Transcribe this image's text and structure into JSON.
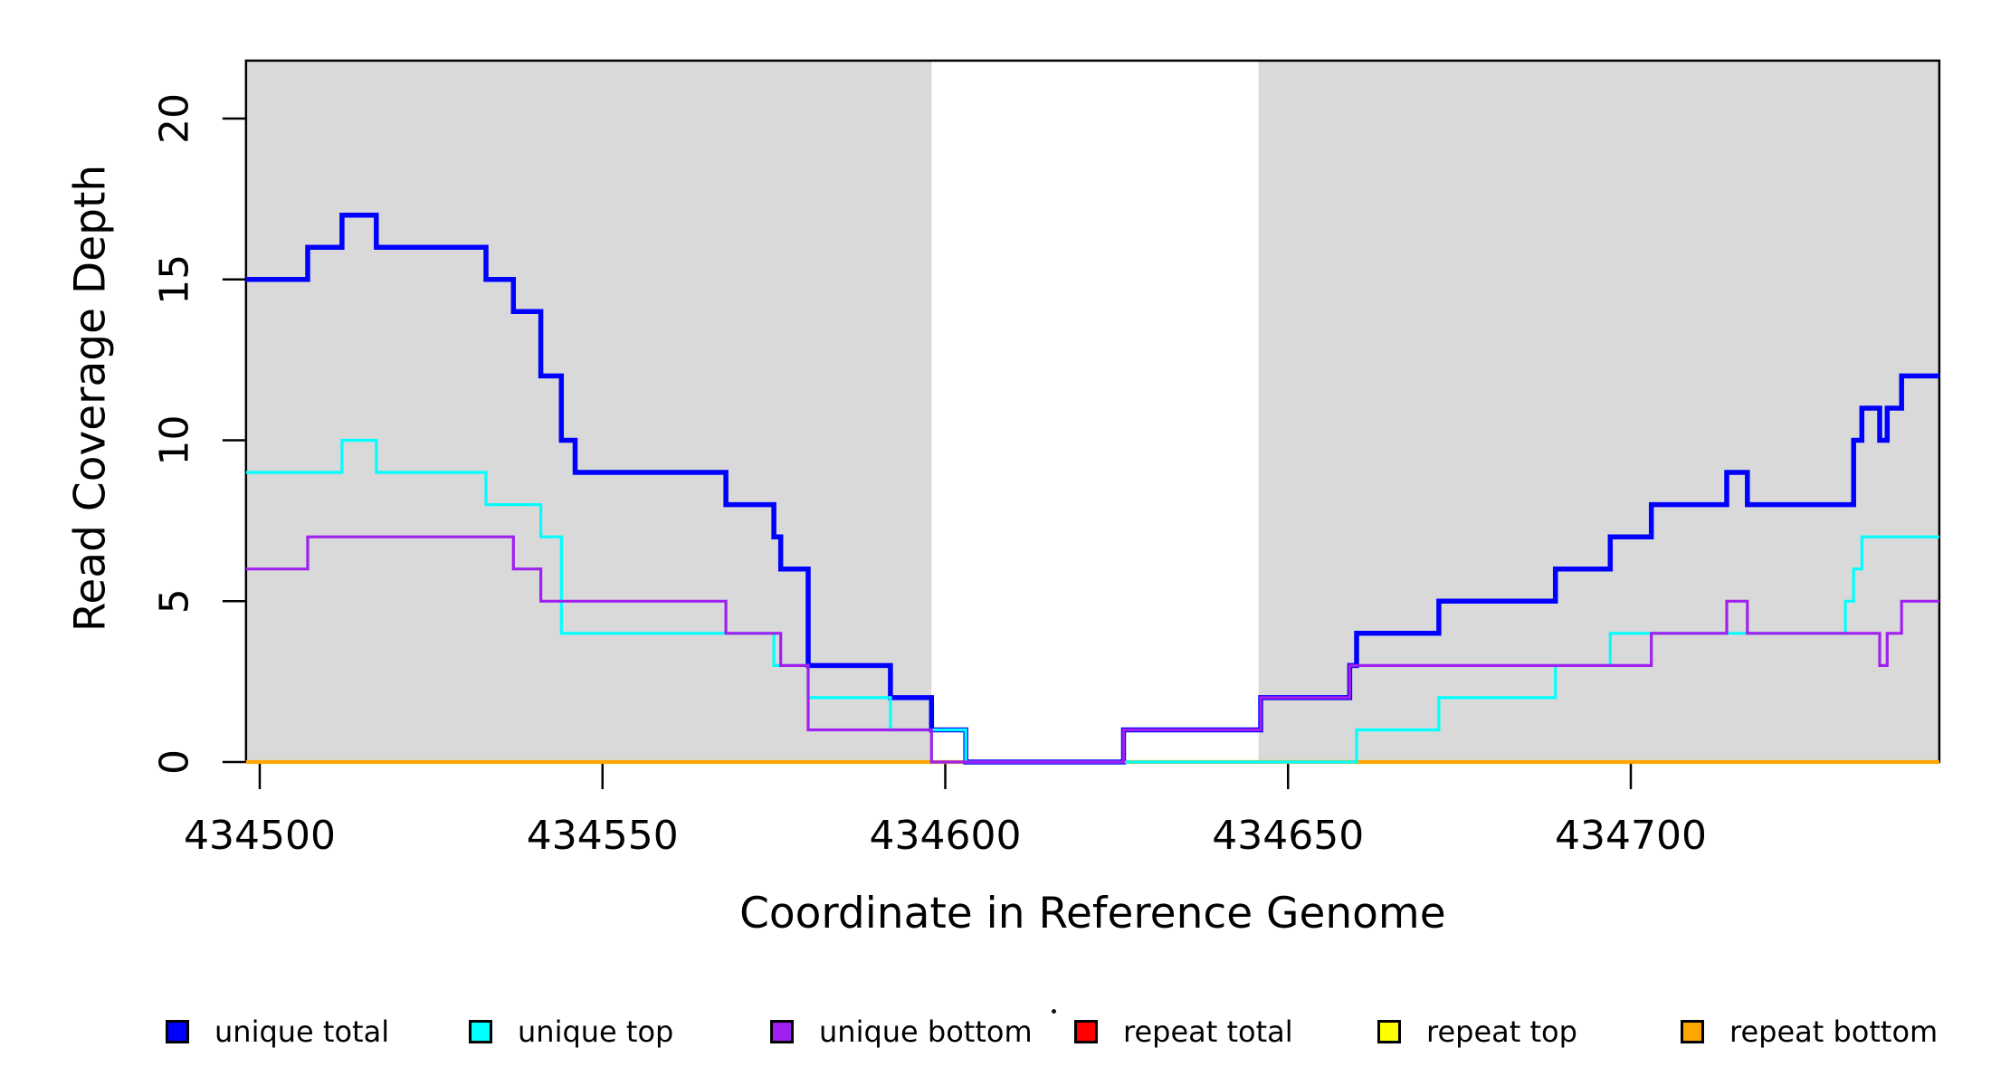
{
  "chart_data": {
    "type": "line",
    "subtype": "step-coverage",
    "xlabel": "Coordinate in Reference Genome",
    "ylabel": "Read Coverage Depth",
    "xlim": [
      434498,
      434745
    ],
    "ylim": [
      0,
      21.8
    ],
    "x_ticks": [
      434500,
      434550,
      434600,
      434650,
      434700
    ],
    "y_ticks": [
      0,
      5,
      10,
      15,
      20
    ],
    "grid": false,
    "legend_position": "bottom",
    "shaded_regions": [
      {
        "name": "unique-region-left",
        "from": 434498,
        "to": 434598,
        "color": "#D9D9D9"
      },
      {
        "name": "unique-region-right",
        "from": 434645.7,
        "to": 434745,
        "color": "#D9D9D9"
      }
    ],
    "series": [
      {
        "name": "repeat total",
        "color": "#FF0000",
        "width": 3.2,
        "breaks": [
          [
            434498,
            0
          ]
        ]
      },
      {
        "name": "repeat top",
        "color": "#FFFF00",
        "width": 3.2,
        "breaks": [
          [
            434498,
            0
          ]
        ]
      },
      {
        "name": "repeat bottom",
        "color": "#FFA500",
        "width": 4.2,
        "breaks": [
          [
            434498,
            0
          ]
        ]
      },
      {
        "name": "unique total",
        "color": "#0000FF",
        "width": 5.5,
        "breaks": [
          [
            434498,
            15
          ],
          [
            434507,
            16
          ],
          [
            434512,
            17
          ],
          [
            434517,
            16
          ],
          [
            434533,
            15
          ],
          [
            434537,
            14
          ],
          [
            434541,
            12
          ],
          [
            434544,
            10
          ],
          [
            434546,
            9
          ],
          [
            434568,
            8
          ],
          [
            434575,
            7
          ],
          [
            434576,
            6
          ],
          [
            434580,
            3
          ],
          [
            434592,
            2
          ],
          [
            434598,
            1
          ],
          [
            434603,
            0
          ],
          [
            434626,
            1
          ],
          [
            434646,
            2
          ],
          [
            434659,
            3
          ],
          [
            434660,
            4
          ],
          [
            434672,
            5
          ],
          [
            434689,
            6
          ],
          [
            434697,
            7
          ],
          [
            434703,
            8
          ],
          [
            434714,
            9
          ],
          [
            434717,
            8
          ],
          [
            434732.5,
            10
          ],
          [
            434733.7,
            11
          ],
          [
            434736.3,
            10
          ],
          [
            434737.4,
            11
          ],
          [
            434739.5,
            12
          ]
        ]
      },
      {
        "name": "unique top",
        "color": "#00FFFF",
        "width": 3.2,
        "breaks": [
          [
            434498,
            9
          ],
          [
            434512,
            10
          ],
          [
            434517,
            9
          ],
          [
            434533,
            8
          ],
          [
            434541,
            7
          ],
          [
            434544,
            4
          ],
          [
            434575,
            3
          ],
          [
            434580,
            2
          ],
          [
            434592,
            1
          ],
          [
            434603,
            0
          ],
          [
            434660,
            1
          ],
          [
            434672,
            2
          ],
          [
            434689,
            3
          ],
          [
            434697,
            4
          ],
          [
            434731.3,
            5
          ],
          [
            434732.5,
            6
          ],
          [
            434733.7,
            7
          ]
        ]
      },
      {
        "name": "unique bottom",
        "color": "#A020F0",
        "width": 3.2,
        "breaks": [
          [
            434498,
            6
          ],
          [
            434507,
            7
          ],
          [
            434537,
            6
          ],
          [
            434541,
            5
          ],
          [
            434568,
            4
          ],
          [
            434576,
            3
          ],
          [
            434580,
            1
          ],
          [
            434598,
            0
          ],
          [
            434626,
            1
          ],
          [
            434646,
            2
          ],
          [
            434659,
            3
          ],
          [
            434703,
            4
          ],
          [
            434714,
            5
          ],
          [
            434717,
            4
          ],
          [
            434736.3,
            3
          ],
          [
            434737.4,
            4
          ],
          [
            434739.5,
            5
          ]
        ]
      }
    ],
    "legend": [
      {
        "label": "unique total",
        "color": "#0000FF"
      },
      {
        "label": "unique top",
        "color": "#00FFFF"
      },
      {
        "label": "unique bottom",
        "color": "#A020F0"
      },
      {
        "label": "repeat total",
        "color": "#FF0000"
      },
      {
        "label": "repeat top",
        "color": "#FFFF00"
      },
      {
        "label": "repeat bottom",
        "color": "#FFA500"
      }
    ]
  }
}
